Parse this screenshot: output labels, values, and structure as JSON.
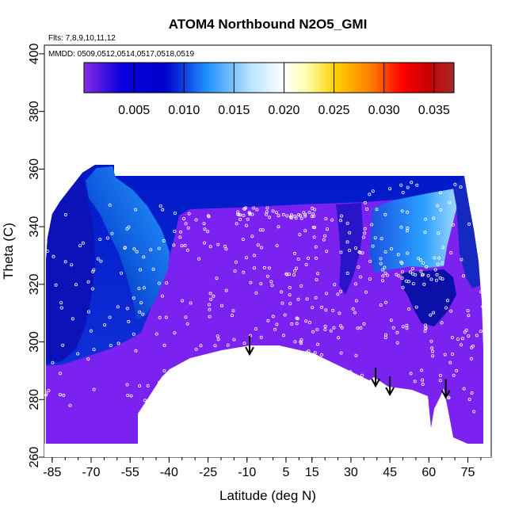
{
  "chart_data": {
    "type": "heatmap",
    "title": "ATOM4 Northbound N2O5_GMI",
    "note_flights": "Flts: 7,8,9,10,11,12",
    "note_dates": "MMDD: 0509,0512,0514,0517,0518,0519",
    "xlabel": "Latitude (deg N)",
    "ylabel": "Theta (C)",
    "xlim": [
      -88,
      84
    ],
    "ylim": [
      260,
      403
    ],
    "x_ticks": [
      -85,
      -70,
      -55,
      -40,
      -25,
      -10,
      5,
      15,
      30,
      45,
      60,
      75
    ],
    "y_ticks": [
      260,
      280,
      300,
      320,
      340,
      360,
      380,
      400
    ],
    "grid": false,
    "colorbar": {
      "position": "top",
      "range": [
        0.0,
        0.037
      ],
      "ticks": [
        0.005,
        0.01,
        0.015,
        0.02,
        0.025,
        0.03,
        0.035
      ],
      "tick_labels": [
        "0.005",
        "0.010",
        "0.015",
        "0.020",
        "0.025",
        "0.030",
        "0.035"
      ],
      "colors": [
        "#8a2be2",
        "#0000cd",
        "#1e90ff",
        "#ffffff",
        "#ffff00",
        "#ff8c00",
        "#ff0000",
        "#a52a2a"
      ]
    },
    "colors": {
      "background_low": "#7b22f0",
      "mid_blue": "#0018c0",
      "light_blue": "#3aa0ff"
    },
    "ground_boundary": {
      "lat": [
        -87,
        -53,
        -53,
        -51,
        -42,
        -38,
        -30,
        -20,
        -10,
        -5,
        5,
        15,
        25,
        38,
        42,
        48,
        55,
        60,
        62,
        64,
        65,
        66,
        68,
        70,
        74,
        78,
        82
      ],
      "theta": [
        264,
        264,
        276,
        279,
        288,
        292,
        295,
        297,
        298.5,
        298.5,
        298,
        295,
        292,
        286,
        288,
        285,
        282,
        276,
        268,
        280,
        272,
        286,
        276,
        265,
        264,
        266,
        266
      ]
    },
    "arrows": [
      {
        "lat": -9,
        "theta": 296
      },
      {
        "lat": 39.5,
        "theta": 285
      },
      {
        "lat": 45,
        "theta": 282
      },
      {
        "lat": 66.5,
        "theta": 281
      }
    ]
  }
}
